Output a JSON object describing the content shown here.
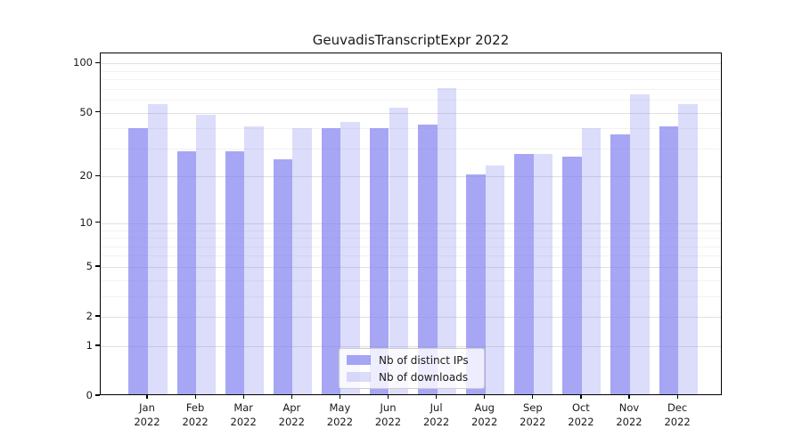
{
  "figure": {
    "background": "#ffffff"
  },
  "chart_data": {
    "type": "bar",
    "title": "GeuvadisTranscriptExpr 2022",
    "categories": [
      "Jan 2022",
      "Feb 2022",
      "Mar 2022",
      "Apr 2022",
      "May 2022",
      "Jun 2022",
      "Jul 2022",
      "Aug 2022",
      "Sep 2022",
      "Oct 2022",
      "Nov 2022",
      "Dec 2022"
    ],
    "series": [
      {
        "name": "Nb of distinct IPs",
        "color": "#8080f0",
        "opacity": 0.7,
        "values": [
          39,
          28,
          28,
          25,
          39,
          39,
          41,
          20,
          27,
          26,
          36,
          40
        ]
      },
      {
        "name": "Nb of downloads",
        "color": "#8080f0",
        "opacity": 0.28,
        "values": [
          55,
          47,
          40,
          39,
          43,
          52,
          69,
          23,
          27,
          39,
          63,
          55
        ]
      }
    ],
    "xlabel": "",
    "ylabel": "",
    "yscale": "log1p",
    "ylim": [
      0,
      115
    ],
    "yticks": [
      0,
      1,
      2,
      5,
      10,
      20,
      50,
      100
    ],
    "yticks_minor": [
      3,
      4,
      6,
      7,
      8,
      9,
      30,
      40,
      60,
      70,
      80,
      90
    ],
    "grid": true,
    "legend_position": "lower center",
    "colors": {
      "grid_major": "#e0e0e0",
      "grid_minor": "#f2f2f2",
      "spine": "#000000",
      "text": "#1a1a1a"
    }
  }
}
